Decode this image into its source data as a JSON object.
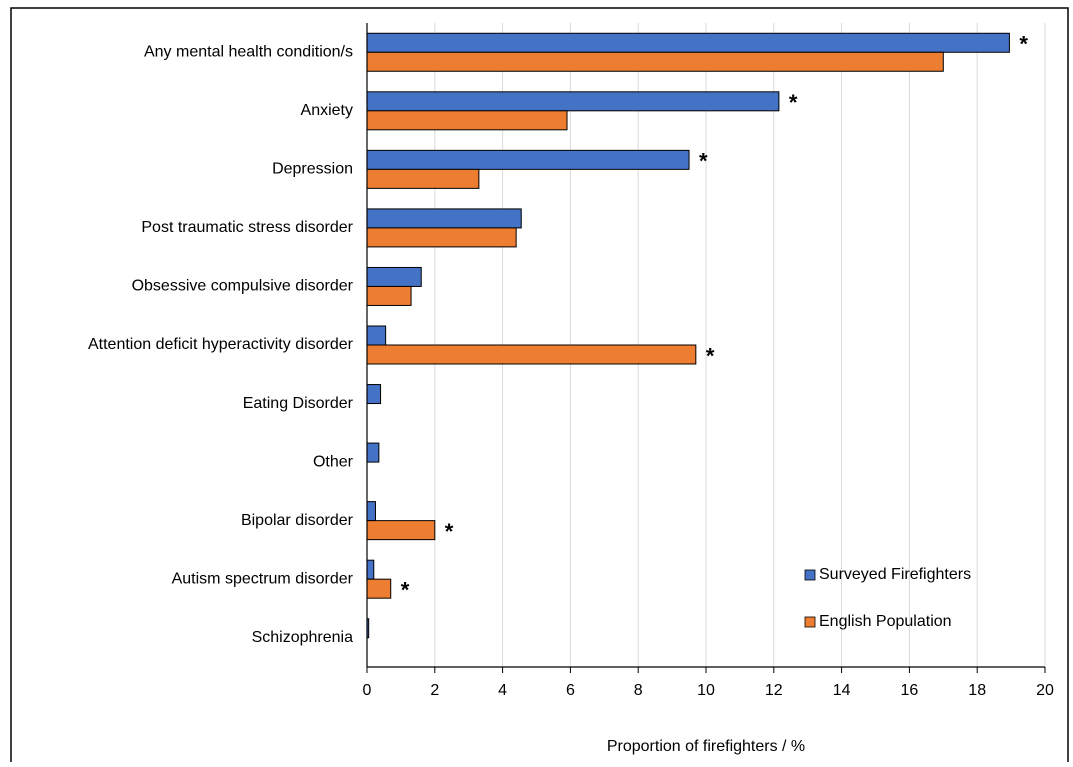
{
  "chart_data": {
    "type": "bar",
    "orientation": "horizontal",
    "x_label": "Proportion of firefighters / %",
    "categories": [
      "Any mental health condition/s",
      "Anxiety",
      "Depression",
      "Post traumatic stress disorder",
      "Obsessive compulsive disorder",
      "Attention deficit  hyperactivity disorder",
      "Eating Disorder",
      "Other",
      "Bipolar disorder",
      "Autism spectrum disorder",
      "Schizophrenia"
    ],
    "series": [
      {
        "name": "Surveyed Firefighters",
        "color": "#4472c4",
        "values": [
          18.95,
          12.15,
          9.5,
          4.55,
          1.6,
          0.55,
          0.4,
          0.35,
          0.25,
          0.2,
          0.05
        ],
        "annotations": [
          "*",
          "*",
          "*",
          null,
          null,
          null,
          null,
          null,
          null,
          null,
          null
        ]
      },
      {
        "name": "English Population",
        "color": "#ed7d31",
        "values": [
          17.0,
          5.9,
          3.3,
          4.4,
          1.3,
          9.7,
          null,
          null,
          2.0,
          0.7,
          null
        ],
        "annotations": [
          null,
          null,
          null,
          null,
          null,
          "*",
          null,
          null,
          "*",
          "*",
          null
        ]
      }
    ],
    "xlim": [
      0,
      20
    ],
    "xticks": [
      0,
      2,
      4,
      6,
      8,
      10,
      12,
      14,
      16,
      18,
      20
    ],
    "grid": true,
    "legend": "lower right"
  }
}
